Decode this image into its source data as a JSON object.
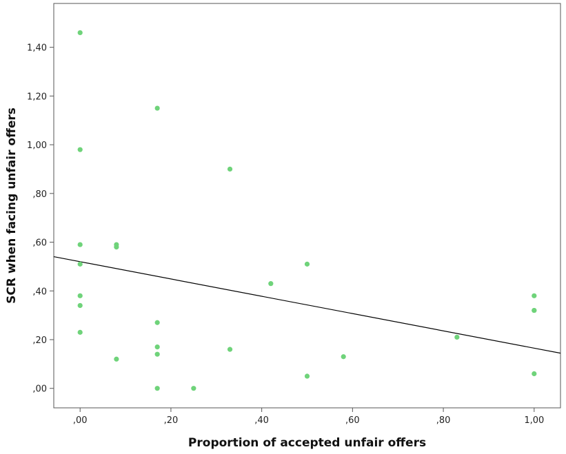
{
  "chart_data": {
    "type": "scatter",
    "xlabel": "Proportion of accepted unfair offers",
    "ylabel": "SCR when facing unfair offers",
    "xlim": [
      -0.058,
      1.058
    ],
    "ylim": [
      -0.08,
      1.58
    ],
    "xticks": [
      0,
      0.2,
      0.4,
      0.6,
      0.8,
      1.0
    ],
    "xtick_labels": [
      ",00",
      ",20",
      ",40",
      ",60",
      ",80",
      "1,00"
    ],
    "yticks": [
      0,
      0.2,
      0.4,
      0.6,
      0.8,
      1.0,
      1.2,
      1.4
    ],
    "ytick_labels": [
      ",00",
      ",20",
      ",40",
      ",60",
      ",80",
      "1,00",
      "1,20",
      "1,40"
    ],
    "grid": false,
    "legend": "none",
    "point_color": "#6fd37a",
    "line_color": "#000000",
    "points": [
      {
        "x": 0.0,
        "y": 1.46
      },
      {
        "x": 0.0,
        "y": 0.98
      },
      {
        "x": 0.0,
        "y": 0.59
      },
      {
        "x": 0.0,
        "y": 0.51
      },
      {
        "x": 0.0,
        "y": 0.38
      },
      {
        "x": 0.0,
        "y": 0.34
      },
      {
        "x": 0.0,
        "y": 0.23
      },
      {
        "x": 0.08,
        "y": 0.59
      },
      {
        "x": 0.08,
        "y": 0.58
      },
      {
        "x": 0.08,
        "y": 0.12
      },
      {
        "x": 0.17,
        "y": 1.15
      },
      {
        "x": 0.17,
        "y": 0.27
      },
      {
        "x": 0.17,
        "y": 0.17
      },
      {
        "x": 0.17,
        "y": 0.14
      },
      {
        "x": 0.17,
        "y": 0.0
      },
      {
        "x": 0.25,
        "y": 0.0
      },
      {
        "x": 0.33,
        "y": 0.9
      },
      {
        "x": 0.33,
        "y": 0.16
      },
      {
        "x": 0.42,
        "y": 0.43
      },
      {
        "x": 0.5,
        "y": 0.51
      },
      {
        "x": 0.5,
        "y": 0.05
      },
      {
        "x": 0.58,
        "y": 0.13
      },
      {
        "x": 0.83,
        "y": 0.21
      },
      {
        "x": 1.0,
        "y": 0.38
      },
      {
        "x": 1.0,
        "y": 0.32
      },
      {
        "x": 1.0,
        "y": 0.32
      },
      {
        "x": 1.0,
        "y": 0.06
      }
    ],
    "fit_line": {
      "intercept": 0.52,
      "slope": -0.355
    }
  }
}
